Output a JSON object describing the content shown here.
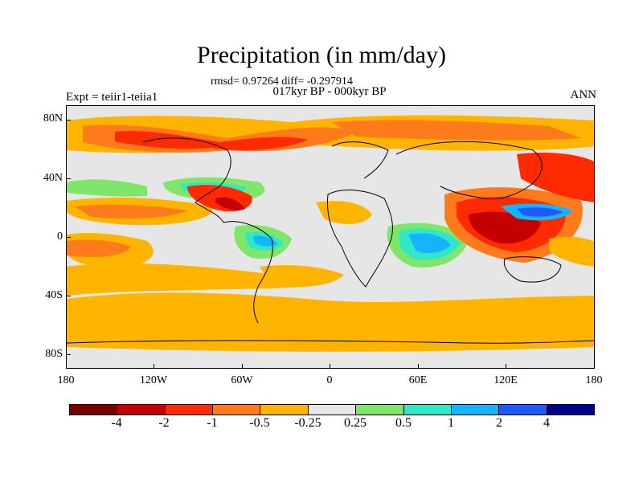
{
  "header": {
    "title": "Precipitation (in mm/day)",
    "stats": "rmsd= 0.97264 diff= -0.297914",
    "period": "017kyr BP - 000kyr BP",
    "experiment": "Expt = teiir1-teiia1",
    "season": "ANN"
  },
  "axes": {
    "y_ticks": [
      "80N",
      "40N",
      "0",
      "40S",
      "80S"
    ],
    "x_ticks": [
      "180",
      "120W",
      "60W",
      "0",
      "60E",
      "120E",
      "180"
    ]
  },
  "colorbar": {
    "labels": [
      "-4",
      "-2",
      "-1",
      "-0.5",
      "-0.25",
      "0.25",
      "0.5",
      "1",
      "2",
      "4"
    ],
    "colors": [
      "#7a0000",
      "#c40000",
      "#ff2a00",
      "#ff7a1a",
      "#ffb400",
      "#e6e6e6",
      "#7fe66a",
      "#2ee8c8",
      "#14b4ff",
      "#1e5aff",
      "#00008c"
    ]
  }
}
